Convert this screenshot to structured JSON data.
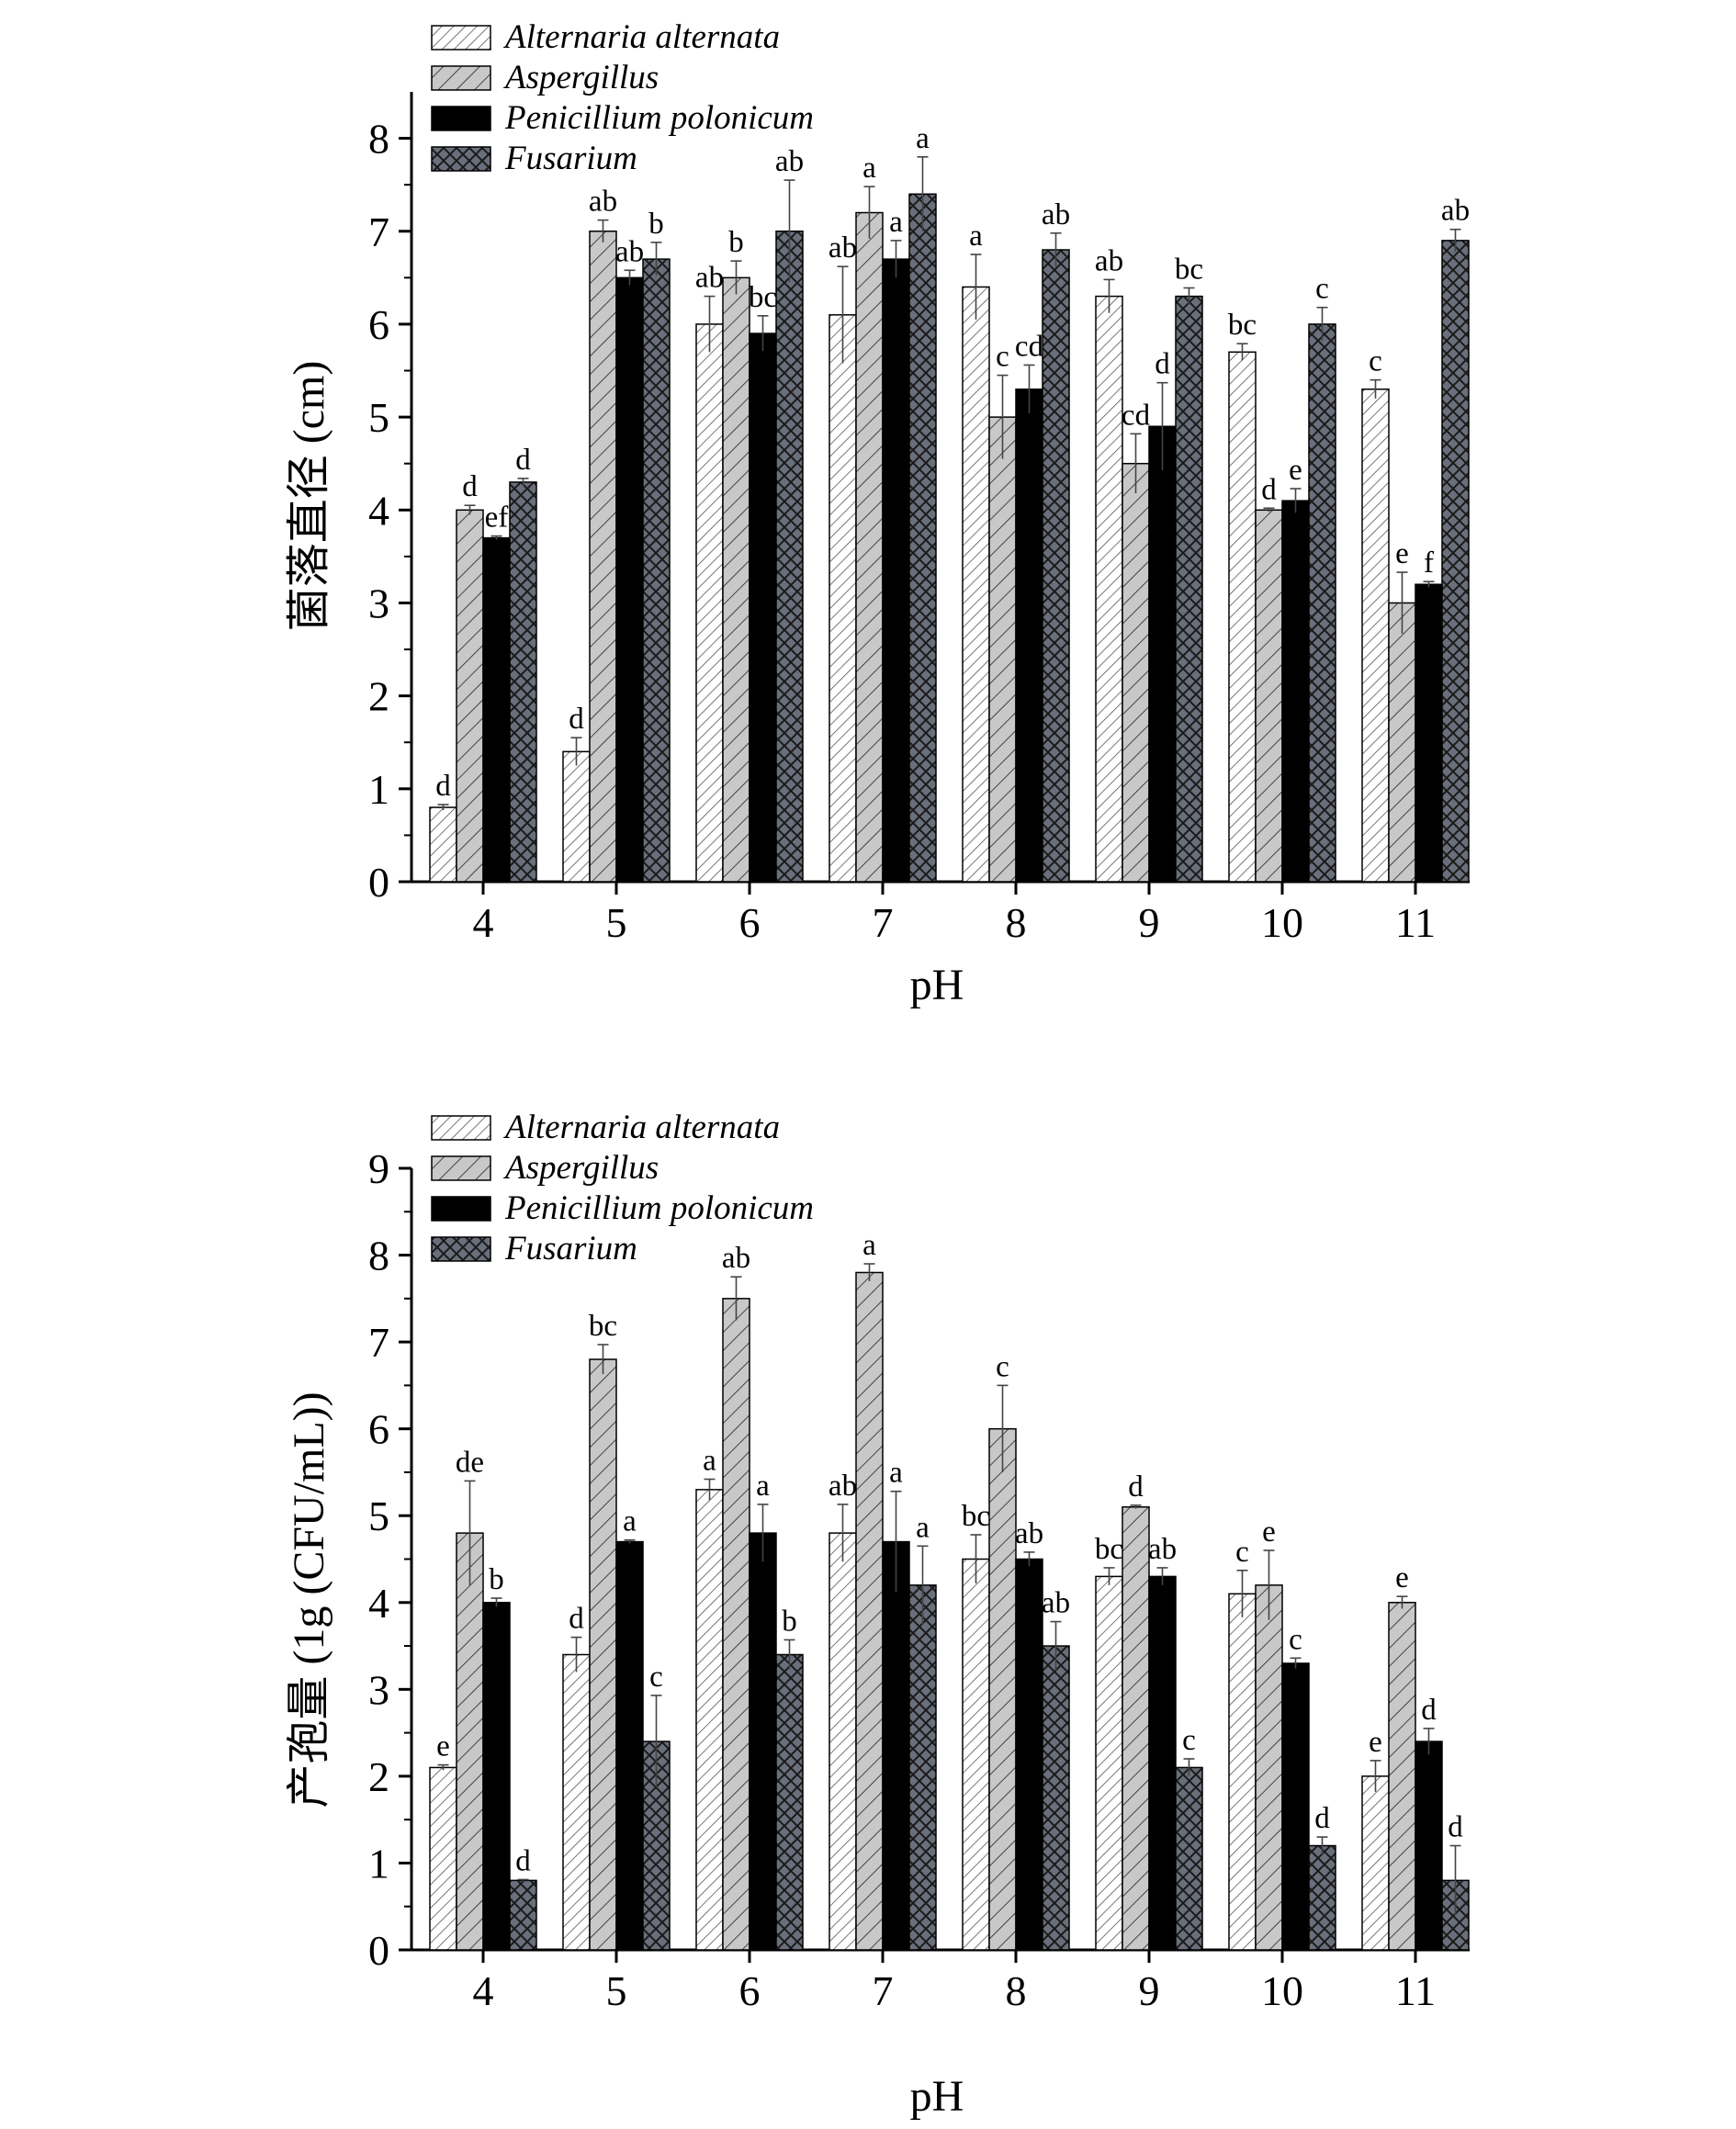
{
  "colors": {
    "alternaria": "#ffffff",
    "aspergillus": "#c8c8c8",
    "penicillium": "#000000",
    "fusarium": "#6a6f7c"
  },
  "chart_data": [
    {
      "type": "bar",
      "title": "",
      "xlabel": "pH",
      "ylabel": "菌落直径 (cm)",
      "ylim": [
        0,
        8.5
      ],
      "yticks": [
        "0",
        "1",
        "2",
        "3",
        "4",
        "5",
        "6",
        "7",
        "8"
      ],
      "categories": [
        "4",
        "5",
        "6",
        "7",
        "8",
        "9",
        "10",
        "11"
      ],
      "legend_position": "top-left",
      "series": [
        {
          "name": "Alternaria alternata",
          "pattern": "light-hatch",
          "values": [
            0.8,
            1.4,
            6.0,
            6.1,
            6.4,
            6.3,
            5.7,
            5.3
          ],
          "errors": [
            0.03,
            0.15,
            0.3,
            0.52,
            0.35,
            0.18,
            0.09,
            0.1
          ],
          "labels": [
            "d",
            "d",
            "ab",
            "ab",
            "a",
            "ab",
            "bc",
            "c"
          ]
        },
        {
          "name": "Aspergillus",
          "pattern": "grey-hatch",
          "values": [
            4.0,
            7.0,
            6.5,
            7.2,
            5.0,
            4.5,
            4.0,
            3.0
          ],
          "errors": [
            0.05,
            0.12,
            0.18,
            0.28,
            0.45,
            0.32,
            0.02,
            0.33
          ],
          "labels": [
            "d",
            "ab",
            "b",
            "a",
            "c",
            "cd",
            "d",
            "e"
          ]
        },
        {
          "name": "Penicillium polonicum",
          "pattern": "solid-black",
          "values": [
            3.7,
            6.5,
            5.9,
            6.7,
            5.3,
            4.9,
            4.1,
            3.2
          ],
          "errors": [
            0.02,
            0.08,
            0.19,
            0.2,
            0.26,
            0.47,
            0.13,
            0.03
          ],
          "labels": [
            "ef",
            "ab",
            "bc",
            "a",
            "cd",
            "d",
            "e",
            "f"
          ]
        },
        {
          "name": "Fusarium",
          "pattern": "crosshatch",
          "values": [
            4.3,
            6.7,
            7.0,
            7.4,
            6.8,
            6.3,
            6.0,
            6.9
          ],
          "errors": [
            0.04,
            0.18,
            0.55,
            0.4,
            0.18,
            0.09,
            0.18,
            0.12
          ],
          "labels": [
            "d",
            "b",
            "ab",
            "a",
            "ab",
            "bc",
            "c",
            "ab"
          ]
        }
      ]
    },
    {
      "type": "bar",
      "title": "",
      "xlabel": "pH",
      "ylabel": "产孢量 (1g (CFU/mL))",
      "ylim": [
        0,
        9
      ],
      "yticks": [
        "0",
        "1",
        "2",
        "3",
        "4",
        "5",
        "6",
        "7",
        "8",
        "9"
      ],
      "categories": [
        "4",
        "5",
        "6",
        "7",
        "8",
        "9",
        "10",
        "11"
      ],
      "legend_position": "top-left",
      "series": [
        {
          "name": "Alternaria alternata",
          "pattern": "light-hatch",
          "values": [
            2.1,
            3.4,
            5.3,
            4.8,
            4.5,
            4.3,
            4.1,
            2.0
          ],
          "errors": [
            0.03,
            0.2,
            0.12,
            0.33,
            0.28,
            0.1,
            0.27,
            0.18
          ],
          "labels": [
            "e",
            "d",
            "a",
            "ab",
            "bc",
            "bc",
            "c",
            "e"
          ]
        },
        {
          "name": "Aspergillus",
          "pattern": "grey-hatch",
          "values": [
            4.8,
            6.8,
            7.5,
            7.8,
            6.0,
            5.1,
            4.2,
            4.0
          ],
          "errors": [
            0.6,
            0.17,
            0.25,
            0.1,
            0.5,
            0.02,
            0.4,
            0.07
          ],
          "labels": [
            "de",
            "bc",
            "ab",
            "a",
            "c",
            "d",
            "e",
            "e"
          ]
        },
        {
          "name": "Penicillium polonicum",
          "pattern": "solid-black",
          "values": [
            4.0,
            4.7,
            4.8,
            4.7,
            4.5,
            4.3,
            3.3,
            2.4
          ],
          "errors": [
            0.05,
            0.02,
            0.33,
            0.58,
            0.08,
            0.1,
            0.06,
            0.15
          ],
          "labels": [
            "b",
            "a",
            "a",
            "a",
            "ab",
            "ab",
            "c",
            "d"
          ]
        },
        {
          "name": "Fusarium",
          "pattern": "crosshatch",
          "values": [
            0.8,
            2.4,
            3.4,
            4.2,
            3.5,
            2.1,
            1.2,
            0.8
          ],
          "errors": [
            0.01,
            0.53,
            0.17,
            0.45,
            0.28,
            0.1,
            0.1,
            0.4
          ],
          "labels": [
            "d",
            "c",
            "b",
            "a",
            "ab",
            "c",
            "d",
            "d"
          ]
        }
      ]
    }
  ]
}
